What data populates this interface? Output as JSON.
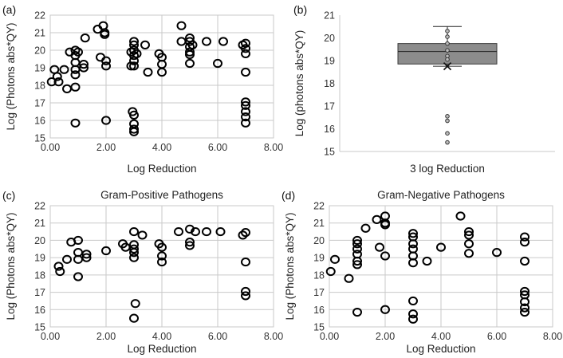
{
  "chart_data": [
    {
      "id": "a",
      "type": "scatter",
      "panel_label": "(a)",
      "title": "",
      "xlabel": "Log Reduction",
      "ylabel": "Log (Photons abs*QY)",
      "xlim": [
        0,
        8
      ],
      "ylim": [
        15,
        22
      ],
      "xticks": [
        "0.00",
        "2.00",
        "4.00",
        "6.00",
        "8.00"
      ],
      "yticks": [
        "15",
        "16",
        "17",
        "18",
        "19",
        "20",
        "21",
        "22"
      ],
      "grid": true,
      "points": [
        [
          0.05,
          18.2
        ],
        [
          0.15,
          18.9
        ],
        [
          0.25,
          18.5
        ],
        [
          0.3,
          18.2
        ],
        [
          0.5,
          18.9
        ],
        [
          0.6,
          17.8
        ],
        [
          0.7,
          19.9
        ],
        [
          0.9,
          20.0
        ],
        [
          0.9,
          19.7
        ],
        [
          0.9,
          19.3
        ],
        [
          0.9,
          18.9
        ],
        [
          0.9,
          18.6
        ],
        [
          0.9,
          17.9
        ],
        [
          0.9,
          15.85
        ],
        [
          1.0,
          19.9
        ],
        [
          1.2,
          19.2
        ],
        [
          1.2,
          19.0
        ],
        [
          1.25,
          20.7
        ],
        [
          1.7,
          21.2
        ],
        [
          1.8,
          19.6
        ],
        [
          1.9,
          21.4
        ],
        [
          1.95,
          21.0
        ],
        [
          1.95,
          20.9
        ],
        [
          2.0,
          19.4
        ],
        [
          2.0,
          19.1
        ],
        [
          2.0,
          16.0
        ],
        [
          2.9,
          19.1
        ],
        [
          2.9,
          19.9
        ],
        [
          3.0,
          20.5
        ],
        [
          3.0,
          20.3
        ],
        [
          3.0,
          20.0
        ],
        [
          3.0,
          19.7
        ],
        [
          3.0,
          19.4
        ],
        [
          3.0,
          19.1
        ],
        [
          2.95,
          16.5
        ],
        [
          3.0,
          16.3
        ],
        [
          3.0,
          15.8
        ],
        [
          3.0,
          15.5
        ],
        [
          3.0,
          15.35
        ],
        [
          3.1,
          19.8
        ],
        [
          3.4,
          20.3
        ],
        [
          3.5,
          18.75
        ],
        [
          3.9,
          19.8
        ],
        [
          4.0,
          19.6
        ],
        [
          4.0,
          19.2
        ],
        [
          4.0,
          18.75
        ],
        [
          4.7,
          21.4
        ],
        [
          4.7,
          20.5
        ],
        [
          5.0,
          20.7
        ],
        [
          5.0,
          20.5
        ],
        [
          5.0,
          20.2
        ],
        [
          5.0,
          19.9
        ],
        [
          5.0,
          19.75
        ],
        [
          5.0,
          19.25
        ],
        [
          5.1,
          20.3
        ],
        [
          5.6,
          20.5
        ],
        [
          6.0,
          19.25
        ],
        [
          6.2,
          20.5
        ],
        [
          6.9,
          20.3
        ],
        [
          7.0,
          20.4
        ],
        [
          7.0,
          20.1
        ],
        [
          7.0,
          19.8
        ],
        [
          7.0,
          18.75
        ],
        [
          7.0,
          17.05
        ],
        [
          7.0,
          16.85
        ],
        [
          7.0,
          16.5
        ],
        [
          7.0,
          16.2
        ],
        [
          7.0,
          15.85
        ]
      ]
    },
    {
      "id": "b",
      "type": "box",
      "panel_label": "(b)",
      "title": "",
      "xlabel": "3 log Reduction",
      "ylabel": "Log (photons abs*QY)",
      "ylim": [
        15,
        21
      ],
      "yticks": [
        "15",
        "16",
        "17",
        "18",
        "19",
        "20",
        "21"
      ],
      "grid": false,
      "box": {
        "whisker_low": 18.75,
        "q1": 18.85,
        "median": 19.4,
        "q3": 19.75,
        "whisker_high": 20.5,
        "mean": 18.75
      },
      "points": [
        20.3,
        20.05,
        19.75,
        19.45,
        19.2,
        19.05,
        16.55,
        16.35,
        15.8,
        15.4
      ]
    },
    {
      "id": "c",
      "type": "scatter",
      "panel_label": "(c)",
      "title": "Gram-Positive Pathogens",
      "xlabel": "Log Reduction",
      "ylabel": "Log (Photons abs*QY)",
      "xlim": [
        0,
        8
      ],
      "ylim": [
        15,
        22
      ],
      "xticks": [
        "0.00",
        "2.00",
        "4.00",
        "6.00",
        "8.00"
      ],
      "yticks": [
        "15",
        "16",
        "17",
        "18",
        "19",
        "20",
        "21",
        "22"
      ],
      "grid": true,
      "points": [
        [
          0.3,
          18.5
        ],
        [
          0.35,
          18.2
        ],
        [
          0.6,
          18.9
        ],
        [
          0.75,
          19.9
        ],
        [
          1.0,
          20.0
        ],
        [
          1.0,
          19.3
        ],
        [
          1.0,
          18.9
        ],
        [
          1.0,
          17.9
        ],
        [
          1.3,
          19.2
        ],
        [
          1.3,
          19.0
        ],
        [
          2.0,
          19.4
        ],
        [
          2.6,
          19.8
        ],
        [
          2.7,
          19.6
        ],
        [
          3.0,
          20.5
        ],
        [
          3.0,
          19.75
        ],
        [
          3.0,
          19.5
        ],
        [
          3.0,
          19.3
        ],
        [
          3.0,
          19.0
        ],
        [
          3.05,
          16.35
        ],
        [
          3.0,
          15.5
        ],
        [
          3.3,
          20.3
        ],
        [
          3.9,
          19.8
        ],
        [
          4.0,
          19.6
        ],
        [
          4.0,
          19.1
        ],
        [
          4.0,
          18.75
        ],
        [
          4.6,
          20.5
        ],
        [
          5.0,
          20.65
        ],
        [
          5.0,
          19.9
        ],
        [
          5.0,
          19.7
        ],
        [
          5.2,
          20.5
        ],
        [
          5.6,
          20.5
        ],
        [
          6.1,
          20.5
        ],
        [
          6.9,
          20.3
        ],
        [
          7.0,
          20.45
        ],
        [
          7.0,
          18.75
        ],
        [
          7.0,
          17.05
        ],
        [
          7.0,
          16.8
        ]
      ]
    },
    {
      "id": "d",
      "type": "scatter",
      "panel_label": "(d)",
      "title": "Gram-Negative Pathogens",
      "xlabel": "Log Reduction",
      "ylabel": "Log (Photons abs*QY)",
      "xlim": [
        0,
        8
      ],
      "ylim": [
        15,
        22
      ],
      "xticks": [
        "0.00",
        "2.00",
        "4.00",
        "6.00",
        "8.00"
      ],
      "yticks": [
        "15",
        "16",
        "17",
        "18",
        "19",
        "20",
        "21",
        "22"
      ],
      "grid": true,
      "points": [
        [
          0.05,
          18.2
        ],
        [
          0.2,
          18.9
        ],
        [
          0.7,
          17.8
        ],
        [
          1.0,
          20.0
        ],
        [
          1.0,
          19.8
        ],
        [
          1.0,
          19.5
        ],
        [
          1.0,
          19.2
        ],
        [
          1.0,
          18.8
        ],
        [
          1.0,
          18.6
        ],
        [
          1.0,
          15.85
        ],
        [
          1.3,
          20.7
        ],
        [
          1.7,
          21.2
        ],
        [
          1.8,
          19.6
        ],
        [
          2.0,
          21.4
        ],
        [
          2.0,
          21.0
        ],
        [
          2.0,
          20.9
        ],
        [
          2.0,
          19.1
        ],
        [
          2.0,
          16.0
        ],
        [
          3.0,
          20.4
        ],
        [
          3.0,
          20.2
        ],
        [
          3.0,
          19.8
        ],
        [
          3.0,
          19.5
        ],
        [
          3.0,
          19.1
        ],
        [
          3.0,
          18.7
        ],
        [
          3.0,
          16.5
        ],
        [
          3.0,
          15.75
        ],
        [
          3.0,
          15.45
        ],
        [
          3.5,
          18.8
        ],
        [
          4.0,
          19.6
        ],
        [
          4.7,
          21.4
        ],
        [
          5.0,
          20.5
        ],
        [
          5.0,
          20.3
        ],
        [
          5.0,
          19.8
        ],
        [
          5.0,
          19.25
        ],
        [
          6.0,
          19.3
        ],
        [
          7.0,
          20.2
        ],
        [
          7.0,
          19.9
        ],
        [
          7.0,
          18.8
        ],
        [
          7.0,
          17.05
        ],
        [
          7.0,
          16.85
        ],
        [
          7.0,
          16.45
        ],
        [
          7.0,
          16.1
        ],
        [
          7.0,
          15.85
        ]
      ]
    }
  ]
}
